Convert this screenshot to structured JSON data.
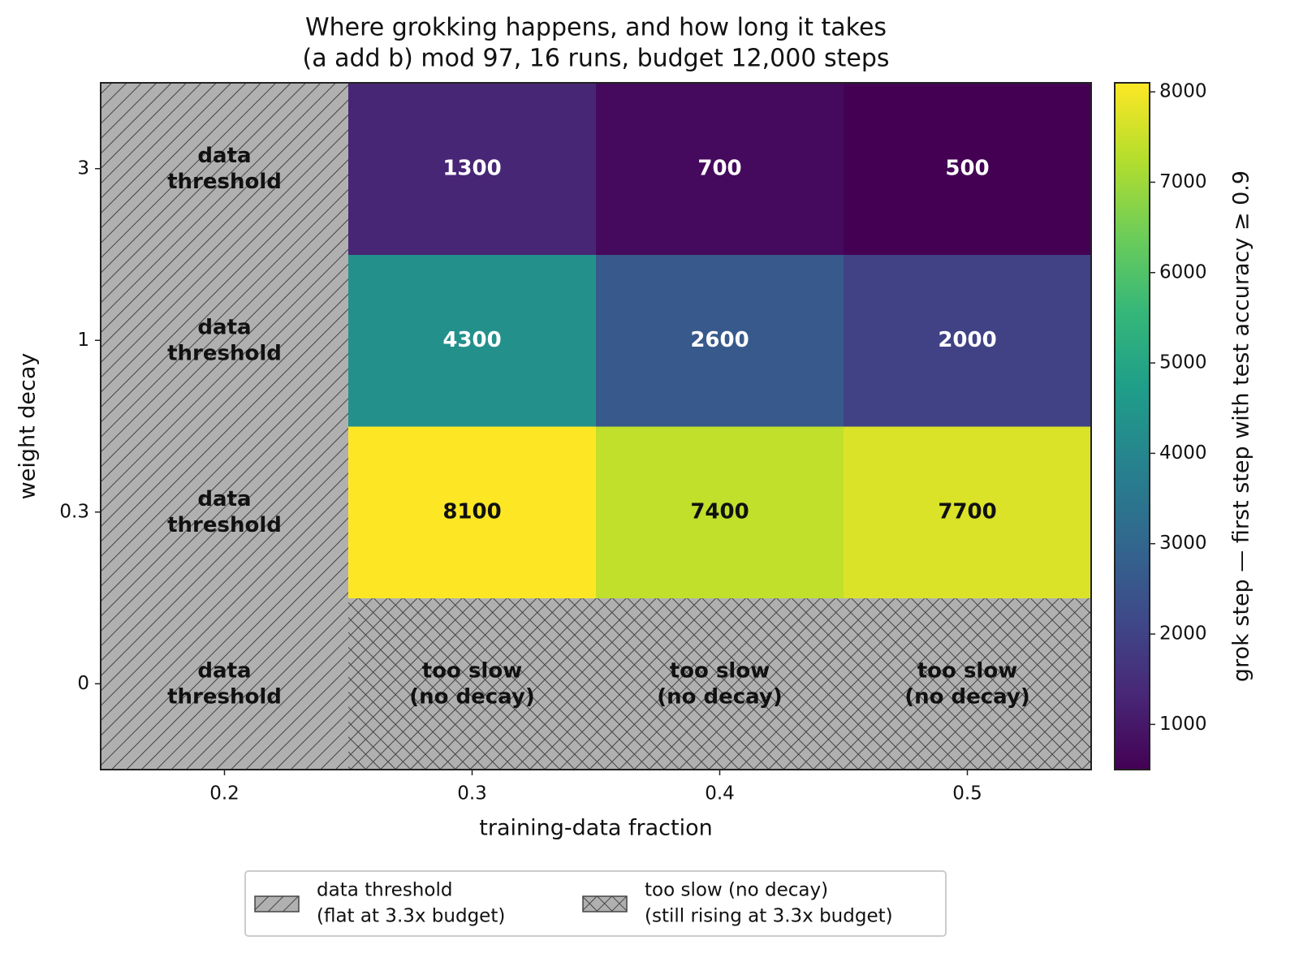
{
  "chart_data": {
    "type": "heatmap",
    "title": "Where grokking happens, and how long it takes",
    "subtitle": "(a add b) mod 97, 16 runs, budget 12,000 steps",
    "x_label": "training-data fraction",
    "y_label": "weight decay",
    "x_categories": [
      "0.2",
      "0.3",
      "0.4",
      "0.5"
    ],
    "y_categories": [
      "0",
      "0.3",
      "1",
      "3"
    ],
    "z": [
      [
        null,
        null,
        null,
        null
      ],
      [
        null,
        8100,
        7400,
        7700
      ],
      [
        null,
        4300,
        2600,
        2000
      ],
      [
        null,
        1300,
        700,
        500
      ]
    ],
    "cell_labels": [
      [
        [
          "data",
          "threshold"
        ],
        [
          "too slow",
          "(no decay)"
        ],
        [
          "too slow",
          "(no decay)"
        ],
        [
          "too slow",
          "(no decay)"
        ]
      ],
      [
        [
          "data",
          "threshold"
        ],
        null,
        null,
        null
      ],
      [
        [
          "data",
          "threshold"
        ],
        null,
        null,
        null
      ],
      [
        [
          "data",
          "threshold"
        ],
        null,
        null,
        null
      ]
    ],
    "colormap": "viridis",
    "clim": [
      500,
      8100
    ],
    "colorbar_ticks": [
      1000,
      2000,
      3000,
      4000,
      5000,
      6000,
      7000,
      8000
    ],
    "colorbar_label": "grok step — first step with test accuracy ≥ 0.9",
    "legend": {
      "position": "below",
      "entries": [
        {
          "name": "data threshold",
          "note": "(flat at 3.3x budget)",
          "hatch": "diagonal"
        },
        {
          "name": "too slow (no decay)",
          "note": "(still rising at 3.3x budget)",
          "hatch": "cross"
        }
      ]
    }
  }
}
